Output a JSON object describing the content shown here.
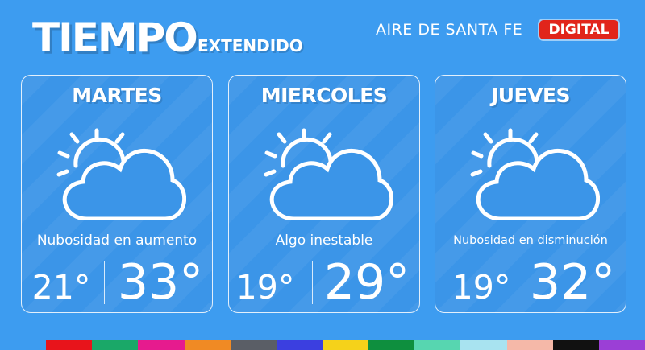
{
  "header": {
    "title": "TIEMPO",
    "subtitle": "EXTENDIDO",
    "brand_name": "AIRE DE SANTA FE",
    "brand_badge": "DIGITAL"
  },
  "forecast": [
    {
      "day": "MARTES",
      "icon": "sun-behind-cloud-icon",
      "description": "Nubosidad en aumento",
      "min": "21°",
      "max": "33°"
    },
    {
      "day": "MIERCOLES",
      "icon": "sun-behind-cloud-icon",
      "description": "Algo inestable",
      "min": "19°",
      "max": "29°"
    },
    {
      "day": "JUEVES",
      "icon": "sun-behind-cloud-icon",
      "description": "Nubosidad en disminución",
      "min": "19°",
      "max": "32°"
    }
  ],
  "colors": {
    "background": "#3d9cf0",
    "card": "#3b95e8",
    "badge": "#e1251b",
    "stripes": [
      "#3d9cf0",
      "#e8141b",
      "#1aa868",
      "#e61b8e",
      "#f08a24",
      "#5a5e66",
      "#3b3fe0",
      "#f5d21a",
      "#0e8f3e",
      "#57d6b0",
      "#a8e3f0",
      "#f5b8a8",
      "#111111",
      "#9b3fd6"
    ]
  }
}
